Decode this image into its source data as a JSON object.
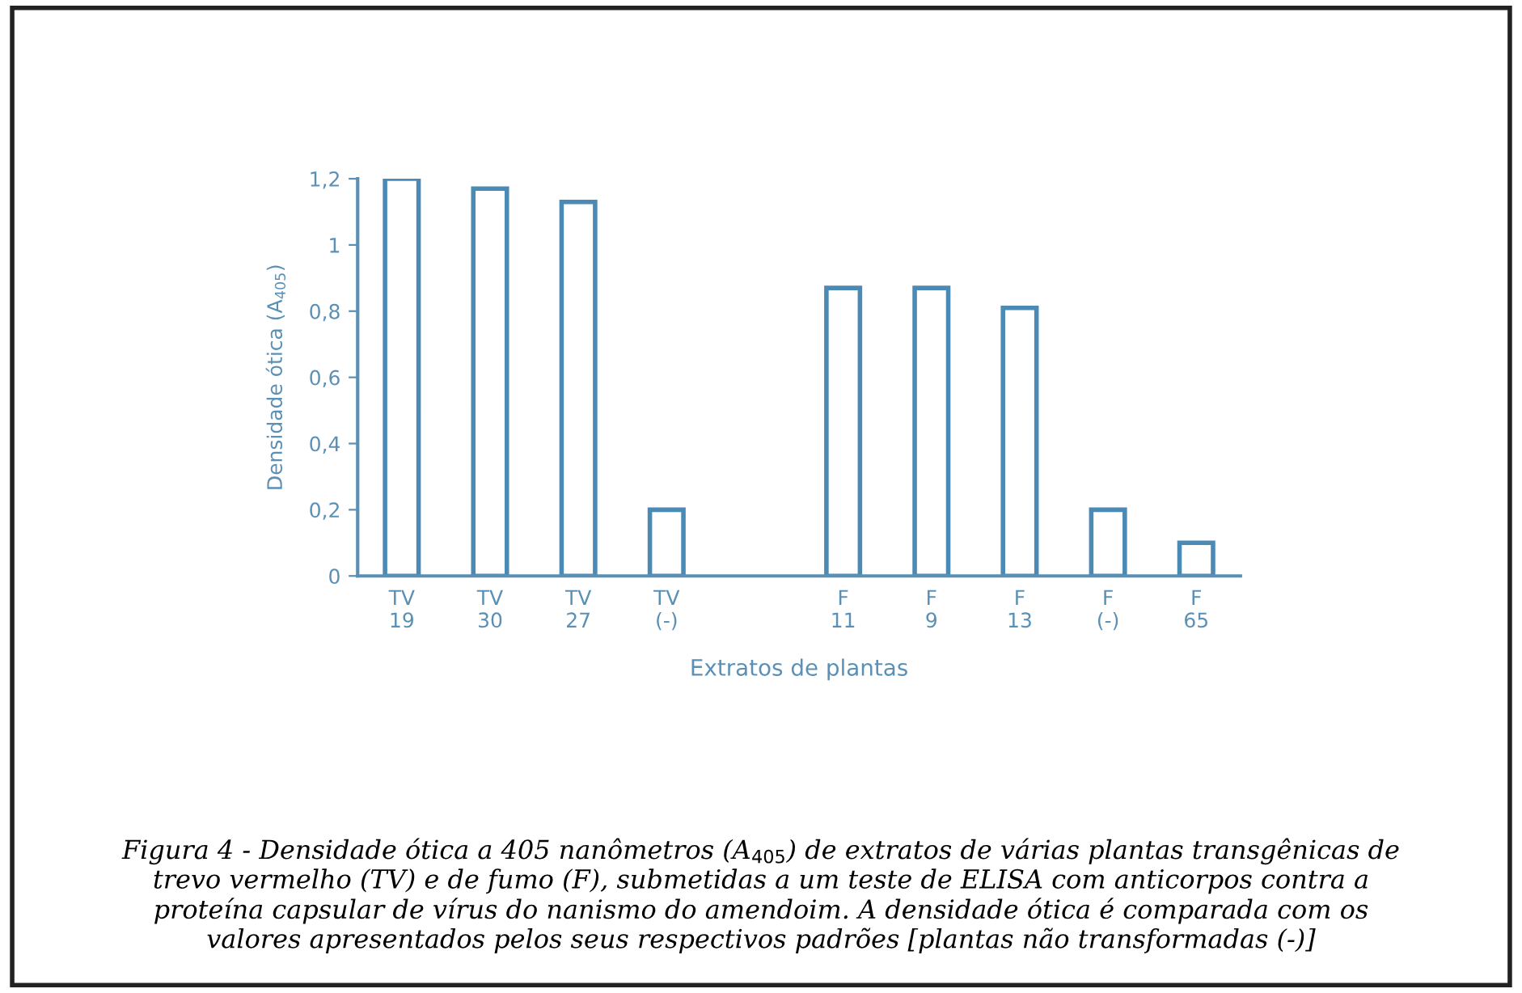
{
  "chart_data": {
    "type": "bar",
    "ylabel": "Densidade ótica (A$_{405}$)",
    "xlabel": "Extratos de plantas",
    "categories": [
      "TV\n19",
      "TV\n30",
      "TV\n27",
      "TV\n(-)",
      null,
      "F\n11",
      "F\n9",
      "F\n13",
      "F\n(-)",
      "F\n65"
    ],
    "values": [
      1.2,
      1.17,
      1.13,
      0.2,
      null,
      0.87,
      0.87,
      0.81,
      0.2,
      0.1
    ],
    "color": "#4a8ab5",
    "ylim": [
      0,
      1.2
    ],
    "yticks": [
      0,
      {
        "value": 0.2,
        "label": "0,2"
      },
      {
        "value": 0.4,
        "label": "0,4"
      },
      {
        "value": 0.6,
        "label": "0,6"
      },
      {
        "value": 0.8,
        "label": "0,8"
      },
      1,
      {
        "value": 1.2,
        "label": "1,2"
      }
    ],
    "grid": false,
    "annotations": [
      "Figura 4 - Densidade ótica a 405 nanômetros (A$_{405}$) de extratos de várias plantas transgênicas de trevo vermelho (TV) e de fumo (F), submetidas a um teste de ELISA com anticorpos contra a proteína capsular de vírus do nanismo do amendoim. A densidade ótica é comparada com os valores apresentados pelos seus respectivos padrões [plantas não transformadas (-)]"
    ]
  }
}
